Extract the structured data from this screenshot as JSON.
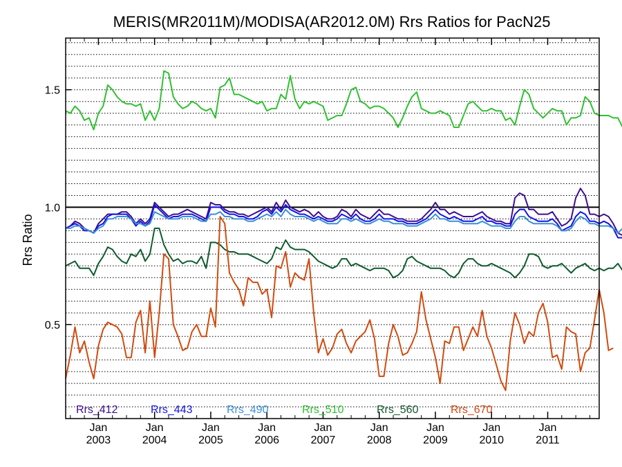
{
  "chart_data": {
    "type": "line",
    "title": "MERIS(MR2011M)/MODISA(AR2012.0M)  Rrs Ratios for PacN25",
    "xlabel": "",
    "ylabel": "Rrs Ratio",
    "xlim": [
      "2002-06",
      "2011-12"
    ],
    "ylim": [
      0.1,
      1.72
    ],
    "yticks": [
      {
        "value": 0.5,
        "label": "0.5"
      },
      {
        "value": 1.0,
        "label": "1.0"
      },
      {
        "value": 1.5,
        "label": "1.5"
      }
    ],
    "xticks": [
      {
        "month": "Jan",
        "year": "2003",
        "date": "2003-01"
      },
      {
        "month": "Jan",
        "year": "2004",
        "date": "2004-01"
      },
      {
        "month": "Jan",
        "year": "2005",
        "date": "2005-01"
      },
      {
        "month": "Jan",
        "year": "2006",
        "date": "2006-01"
      },
      {
        "month": "Jan",
        "year": "2007",
        "date": "2007-01"
      },
      {
        "month": "Jan",
        "year": "2008",
        "date": "2008-01"
      },
      {
        "month": "Jan",
        "year": "2009",
        "date": "2009-01"
      },
      {
        "month": "Jan",
        "year": "2010",
        "date": "2010-01"
      },
      {
        "month": "Jan",
        "year": "2011",
        "date": "2011-01"
      }
    ],
    "reference_line": 1.0,
    "grid": "horizontal dotted",
    "legend": "bottom",
    "start_date": "2002-06",
    "series": [
      {
        "name": "Rrs_412",
        "color": "#3d0f8f",
        "values": [
          0.91,
          0.92,
          0.94,
          0.93,
          0.91,
          0.9,
          0.89,
          0.93,
          0.95,
          0.97,
          0.97,
          0.97,
          0.98,
          0.98,
          0.96,
          0.93,
          0.95,
          0.93,
          0.95,
          1.02,
          1.0,
          0.98,
          0.96,
          0.97,
          0.97,
          0.98,
          0.99,
          0.98,
          0.97,
          0.96,
          0.95,
          1.02,
          1.01,
          1.01,
          0.99,
          0.98,
          0.98,
          0.97,
          0.97,
          0.96,
          0.97,
          0.98,
          0.99,
          1.0,
          0.98,
          1.02,
          0.99,
          1.03,
          1.0,
          0.99,
          0.98,
          0.99,
          0.98,
          0.96,
          0.98,
          0.96,
          0.95,
          0.95,
          0.96,
          0.99,
          0.98,
          0.96,
          0.99,
          0.97,
          0.96,
          0.95,
          0.97,
          0.99,
          0.97,
          0.97,
          0.96,
          0.95,
          0.95,
          0.94,
          0.94,
          0.94,
          0.95,
          0.97,
          0.99,
          1.02,
          0.99,
          0.99,
          0.97,
          0.98,
          0.97,
          0.96,
          0.96,
          0.96,
          0.97,
          0.98,
          0.96,
          0.95,
          0.94,
          0.94,
          0.93,
          0.93,
          1.04,
          1.06,
          1.05,
          0.99,
          0.99,
          0.97,
          0.97,
          0.97,
          0.98,
          0.95,
          0.92,
          0.93,
          0.95,
          1.04,
          1.08,
          1.05,
          0.97,
          0.97,
          0.96,
          0.97,
          0.96,
          0.93,
          0.89,
          0.88
        ]
      },
      {
        "name": "Rrs_443",
        "color": "#1414e6",
        "values": [
          0.91,
          0.92,
          0.93,
          0.92,
          0.9,
          0.9,
          0.89,
          0.92,
          0.93,
          0.96,
          0.97,
          0.97,
          0.97,
          0.97,
          0.95,
          0.92,
          0.94,
          0.92,
          0.94,
          1.01,
          0.99,
          0.97,
          0.95,
          0.96,
          0.96,
          0.97,
          0.97,
          0.97,
          0.96,
          0.95,
          0.94,
          1.0,
          1.0,
          1.0,
          0.98,
          0.97,
          0.97,
          0.96,
          0.96,
          0.95,
          0.95,
          0.96,
          0.98,
          0.99,
          0.97,
          1.0,
          0.98,
          1.01,
          0.99,
          0.98,
          0.97,
          0.97,
          0.96,
          0.95,
          0.96,
          0.95,
          0.94,
          0.94,
          0.95,
          0.97,
          0.96,
          0.95,
          0.97,
          0.95,
          0.94,
          0.94,
          0.95,
          0.97,
          0.95,
          0.95,
          0.95,
          0.94,
          0.94,
          0.93,
          0.93,
          0.93,
          0.94,
          0.95,
          0.97,
          0.99,
          0.97,
          0.96,
          0.95,
          0.96,
          0.95,
          0.94,
          0.94,
          0.94,
          0.95,
          0.96,
          0.94,
          0.94,
          0.93,
          0.93,
          0.92,
          0.92,
          0.97,
          0.99,
          0.99,
          0.96,
          0.95,
          0.94,
          0.94,
          0.94,
          0.95,
          0.93,
          0.9,
          0.91,
          0.92,
          0.96,
          0.98,
          0.97,
          0.94,
          0.94,
          0.93,
          0.94,
          0.93,
          0.91,
          0.87,
          0.87
        ]
      },
      {
        "name": "Rrs_490",
        "color": "#3a90d8",
        "values": [
          0.91,
          0.91,
          0.92,
          0.92,
          0.91,
          0.9,
          0.89,
          0.91,
          0.92,
          0.95,
          0.95,
          0.96,
          0.96,
          0.96,
          0.95,
          0.93,
          0.93,
          0.92,
          0.93,
          0.98,
          0.97,
          0.96,
          0.95,
          0.95,
          0.95,
          0.96,
          0.96,
          0.96,
          0.95,
          0.94,
          0.94,
          0.97,
          0.97,
          0.98,
          0.96,
          0.96,
          0.95,
          0.95,
          0.95,
          0.94,
          0.94,
          0.95,
          0.96,
          0.97,
          0.96,
          0.98,
          0.96,
          0.99,
          0.97,
          0.96,
          0.96,
          0.96,
          0.95,
          0.94,
          0.95,
          0.94,
          0.93,
          0.93,
          0.93,
          0.95,
          0.95,
          0.94,
          0.95,
          0.94,
          0.93,
          0.93,
          0.94,
          0.95,
          0.94,
          0.94,
          0.93,
          0.93,
          0.93,
          0.92,
          0.92,
          0.92,
          0.93,
          0.94,
          0.95,
          0.97,
          0.95,
          0.95,
          0.94,
          0.94,
          0.94,
          0.93,
          0.93,
          0.93,
          0.93,
          0.94,
          0.93,
          0.92,
          0.92,
          0.92,
          0.91,
          0.91,
          0.94,
          0.96,
          0.96,
          0.94,
          0.93,
          0.93,
          0.93,
          0.93,
          0.93,
          0.92,
          0.9,
          0.9,
          0.91,
          0.94,
          0.96,
          0.95,
          0.93,
          0.93,
          0.92,
          0.92,
          0.92,
          0.91,
          0.89,
          0.91
        ]
      },
      {
        "name": "Rrs_510",
        "color": "#30c030",
        "values": [
          1.41,
          1.4,
          1.43,
          1.41,
          1.37,
          1.38,
          1.33,
          1.4,
          1.43,
          1.52,
          1.5,
          1.47,
          1.45,
          1.44,
          1.44,
          1.43,
          1.44,
          1.37,
          1.41,
          1.37,
          1.42,
          1.58,
          1.57,
          1.47,
          1.44,
          1.42,
          1.43,
          1.45,
          1.44,
          1.42,
          1.41,
          1.42,
          1.38,
          1.51,
          1.52,
          1.55,
          1.48,
          1.48,
          1.47,
          1.46,
          1.45,
          1.44,
          1.45,
          1.41,
          1.42,
          1.42,
          1.48,
          1.46,
          1.56,
          1.46,
          1.42,
          1.45,
          1.44,
          1.45,
          1.44,
          1.43,
          1.37,
          1.38,
          1.39,
          1.39,
          1.44,
          1.5,
          1.51,
          1.45,
          1.44,
          1.42,
          1.43,
          1.43,
          1.42,
          1.4,
          1.38,
          1.34,
          1.38,
          1.43,
          1.47,
          1.49,
          1.42,
          1.41,
          1.4,
          1.4,
          1.41,
          1.4,
          1.39,
          1.34,
          1.34,
          1.39,
          1.44,
          1.45,
          1.43,
          1.41,
          1.41,
          1.42,
          1.41,
          1.41,
          1.37,
          1.38,
          1.35,
          1.43,
          1.5,
          1.48,
          1.42,
          1.4,
          1.38,
          1.4,
          1.42,
          1.41,
          1.41,
          1.35,
          1.38,
          1.38,
          1.39,
          1.47,
          1.45,
          1.4,
          1.39,
          1.39,
          1.39,
          1.38,
          1.38,
          1.34,
          1.39
        ]
      },
      {
        "name": "Rrs_560",
        "color": "#0f5a2e",
        "values": [
          0.75,
          0.76,
          0.77,
          0.74,
          0.74,
          0.74,
          0.71,
          0.76,
          0.79,
          0.83,
          0.82,
          0.79,
          0.77,
          0.76,
          0.8,
          0.79,
          0.82,
          0.77,
          0.8,
          0.91,
          0.91,
          0.84,
          0.8,
          0.77,
          0.78,
          0.76,
          0.77,
          0.77,
          0.76,
          0.79,
          0.74,
          0.85,
          0.85,
          0.84,
          0.82,
          0.81,
          0.81,
          0.8,
          0.8,
          0.8,
          0.79,
          0.78,
          0.77,
          0.76,
          0.78,
          0.83,
          0.82,
          0.86,
          0.83,
          0.82,
          0.82,
          0.82,
          0.81,
          0.79,
          0.77,
          0.76,
          0.75,
          0.74,
          0.75,
          0.78,
          0.78,
          0.75,
          0.76,
          0.75,
          0.74,
          0.73,
          0.74,
          0.74,
          0.74,
          0.73,
          0.7,
          0.71,
          0.73,
          0.78,
          0.79,
          0.77,
          0.76,
          0.75,
          0.74,
          0.74,
          0.74,
          0.73,
          0.71,
          0.7,
          0.72,
          0.76,
          0.78,
          0.78,
          0.76,
          0.75,
          0.75,
          0.76,
          0.75,
          0.74,
          0.73,
          0.72,
          0.7,
          0.72,
          0.75,
          0.8,
          0.8,
          0.79,
          0.75,
          0.74,
          0.75,
          0.75,
          0.76,
          0.74,
          0.72,
          0.74,
          0.75,
          0.76,
          0.74,
          0.73,
          0.74,
          0.73,
          0.74,
          0.74,
          0.76,
          0.73,
          0.77
        ]
      },
      {
        "name": "Rrs_670",
        "color": "#d24a0e",
        "values": [
          0.27,
          0.37,
          0.49,
          0.38,
          0.43,
          0.34,
          0.27,
          0.41,
          0.48,
          0.51,
          0.5,
          0.49,
          0.46,
          0.36,
          0.36,
          0.51,
          0.56,
          0.38,
          0.6,
          0.36,
          0.55,
          0.8,
          0.78,
          0.5,
          0.45,
          0.39,
          0.4,
          0.47,
          0.5,
          0.45,
          0.45,
          0.57,
          0.49,
          0.96,
          0.93,
          0.72,
          0.68,
          0.65,
          0.58,
          0.7,
          0.68,
          0.68,
          0.63,
          0.65,
          0.53,
          0.75,
          0.74,
          0.81,
          0.66,
          0.72,
          0.7,
          0.69,
          0.78,
          0.55,
          0.38,
          0.44,
          0.37,
          0.4,
          0.46,
          0.48,
          0.42,
          0.38,
          0.43,
          0.45,
          0.47,
          0.52,
          0.44,
          0.28,
          0.28,
          0.42,
          0.5,
          0.45,
          0.37,
          0.38,
          0.42,
          0.47,
          0.64,
          0.52,
          0.44,
          0.36,
          0.25,
          0.43,
          0.42,
          0.49,
          0.49,
          0.39,
          0.44,
          0.49,
          0.45,
          0.56,
          0.45,
          0.4,
          0.33,
          0.26,
          0.22,
          0.43,
          0.55,
          0.5,
          0.42,
          0.47,
          0.45,
          0.55,
          0.59,
          0.51,
          0.36,
          0.37,
          0.31,
          0.49,
          0.47,
          0.46,
          0.3,
          0.38,
          0.4,
          0.52,
          0.65,
          0.55,
          0.39,
          0.4
        ]
      }
    ]
  }
}
